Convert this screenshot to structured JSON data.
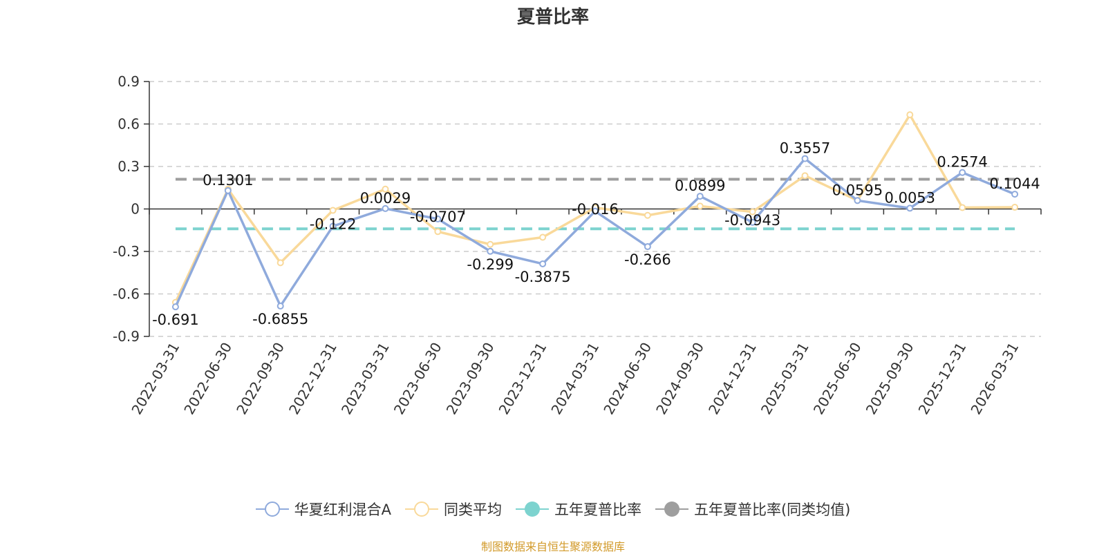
{
  "chart_data": {
    "type": "line",
    "title": "夏普比率",
    "categories": [
      "2022-03-31",
      "2022-06-30",
      "2022-09-30",
      "2022-12-31",
      "2023-03-31",
      "2023-06-30",
      "2023-09-30",
      "2023-12-31",
      "2024-03-31",
      "2024-06-30",
      "2024-09-30",
      "2024-12-31",
      "2025-03-31",
      "2025-06-30",
      "2025-09-30",
      "2025-12-31",
      "2026-03-31"
    ],
    "ylim": [
      -0.9,
      0.9
    ],
    "yticks": [
      "0.9",
      "0.6",
      "0.3",
      "0",
      "-0.3",
      "-0.6",
      "-0.9"
    ],
    "series": [
      {
        "name": "华夏红利混合A",
        "color": "#8faadc",
        "values": [
          -0.691,
          0.1301,
          -0.6855,
          -0.122,
          0.0029,
          -0.0707,
          -0.299,
          -0.3875,
          -0.016,
          -0.266,
          0.0899,
          -0.0943,
          0.3557,
          0.0595,
          0.0053,
          0.2574,
          0.1044
        ],
        "labels": [
          "-0.691",
          "0.1301",
          "-0.6855",
          "-0.122",
          "0.0029",
          "-0.0707",
          "-0.299",
          "-0.3875",
          "-0.016",
          "-0.266",
          "0.0899",
          "-0.0943",
          "0.3557",
          "0.0595",
          "0.0053",
          "0.2574",
          "0.1044"
        ]
      },
      {
        "name": "同类平均",
        "color": "#f9d99a",
        "values": [
          -0.66,
          0.14,
          -0.38,
          -0.01,
          0.14,
          -0.16,
          -0.25,
          -0.2,
          0.01,
          -0.045,
          0.02,
          -0.02,
          0.235,
          0.06,
          0.665,
          0.01,
          0.012
        ]
      },
      {
        "name": "五年夏普比率",
        "color": "#7dd3cf",
        "reference": -0.14
      },
      {
        "name": "五年夏普比率(同类均值)",
        "color": "#9e9e9e",
        "reference": 0.21
      }
    ],
    "grid": true,
    "legend_position": "bottom",
    "source": "制图数据来自恒生聚源数据库"
  }
}
